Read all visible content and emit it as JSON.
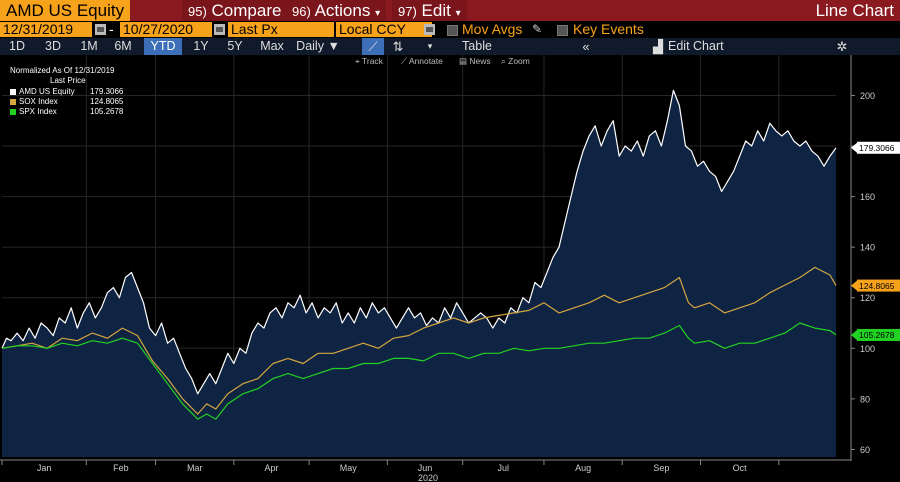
{
  "titlebar": {
    "ticker": "AMD US Equity",
    "compare_num": "95)",
    "compare": "Compare",
    "actions_num": "96)",
    "actions": "Actions",
    "edit_num": "97)",
    "edit": "Edit",
    "chart_type": "Line Chart"
  },
  "toolbar": {
    "start_date": "12/31/2019",
    "separator": "-",
    "end_date": "10/27/2020",
    "price_field": "Last Px",
    "currency": "Local CCY",
    "mov_avgs": "Mov Avgs",
    "key_events": "Key Events"
  },
  "periods": [
    "1D",
    "3D",
    "1M",
    "6M",
    "YTD",
    "1Y",
    "5Y",
    "Max"
  ],
  "active_period": "YTD",
  "frequency": "Daily",
  "table_label": "Table",
  "edit_chart": "Edit Chart",
  "tools": {
    "track": "Track",
    "annotate": "Annotate",
    "news": "News",
    "zoom": "Zoom"
  },
  "legend": {
    "title1": "Normalized As Of 12/31/2019",
    "title2": "Last Price",
    "items": [
      {
        "name": "AMD US Equity",
        "value": "179.3066",
        "color": "#ffffff"
      },
      {
        "name": "SOX Index",
        "value": "124.8065",
        "color": "#d4a640"
      },
      {
        "name": "SPX Index",
        "value": "105.2678",
        "color": "#22d222"
      }
    ]
  },
  "chart_data": {
    "type": "line",
    "xlabel": "2020",
    "month_labels": [
      "Jan",
      "Feb",
      "Mar",
      "Apr",
      "May",
      "Jun",
      "Jul",
      "Aug",
      "Sep",
      "Oct"
    ],
    "ylim": [
      57,
      216
    ],
    "yticks": [
      60,
      80,
      100,
      120,
      140,
      160,
      180,
      200
    ],
    "last_value_labels": [
      {
        "value": "179.3066",
        "color": "#ffffff",
        "bg": "#ffffff",
        "fg": "#000000"
      },
      {
        "value": "124.8065",
        "color": "#f7a21b",
        "bg": "#f7a21b",
        "fg": "#000000"
      },
      {
        "value": "105.2678",
        "color": "#22d222",
        "bg": "#22d222",
        "fg": "#000000"
      }
    ],
    "series": [
      {
        "name": "AMD US Equity",
        "color": "#ffffff",
        "area": true,
        "points": [
          [
            0,
            100
          ],
          [
            0.3,
            104
          ],
          [
            0.6,
            103
          ],
          [
            1,
            106
          ],
          [
            1.4,
            103
          ],
          [
            1.8,
            108
          ],
          [
            2.2,
            104
          ],
          [
            2.6,
            110
          ],
          [
            3.0,
            108
          ],
          [
            3.4,
            105
          ],
          [
            3.8,
            112
          ],
          [
            4.2,
            110
          ],
          [
            4.6,
            116
          ],
          [
            5,
            108
          ],
          [
            5.4,
            114
          ],
          [
            5.8,
            118
          ],
          [
            6.2,
            112
          ],
          [
            6.6,
            116
          ],
          [
            7,
            122
          ],
          [
            7.4,
            124
          ],
          [
            7.8,
            120
          ],
          [
            8.2,
            128
          ],
          [
            8.6,
            130
          ],
          [
            9,
            124
          ],
          [
            9.4,
            118
          ],
          [
            9.8,
            108
          ],
          [
            10.2,
            105
          ],
          [
            10.6,
            110
          ],
          [
            11,
            102
          ],
          [
            11.4,
            104
          ],
          [
            11.8,
            98
          ],
          [
            12.2,
            92
          ],
          [
            12.6,
            88
          ],
          [
            13,
            82
          ],
          [
            13.4,
            86
          ],
          [
            13.8,
            90
          ],
          [
            14.2,
            86
          ],
          [
            14.6,
            92
          ],
          [
            15,
            98
          ],
          [
            15.4,
            94
          ],
          [
            15.8,
            100
          ],
          [
            16.2,
            98
          ],
          [
            16.6,
            106
          ],
          [
            17,
            110
          ],
          [
            17.4,
            108
          ],
          [
            17.8,
            114
          ],
          [
            18.2,
            116
          ],
          [
            18.6,
            112
          ],
          [
            19,
            118
          ],
          [
            19.4,
            116
          ],
          [
            19.8,
            121
          ],
          [
            20.2,
            114
          ],
          [
            20.6,
            118
          ],
          [
            21,
            112
          ],
          [
            21.4,
            116
          ],
          [
            21.8,
            114
          ],
          [
            22.2,
            118
          ],
          [
            22.6,
            110
          ],
          [
            23,
            114
          ],
          [
            23.4,
            110
          ],
          [
            23.8,
            116
          ],
          [
            24.2,
            112
          ],
          [
            24.6,
            118
          ],
          [
            25,
            114
          ],
          [
            25.4,
            116
          ],
          [
            25.8,
            112
          ],
          [
            26.2,
            108
          ],
          [
            26.6,
            112
          ],
          [
            27,
            116
          ],
          [
            27.4,
            112
          ],
          [
            27.8,
            114
          ],
          [
            28.2,
            109
          ],
          [
            28.6,
            112
          ],
          [
            29,
            110
          ],
          [
            29.4,
            116
          ],
          [
            29.8,
            112
          ],
          [
            30.2,
            118
          ],
          [
            30.6,
            114
          ],
          [
            31,
            110
          ],
          [
            31.4,
            112
          ],
          [
            31.8,
            114
          ],
          [
            32.2,
            112
          ],
          [
            32.6,
            108
          ],
          [
            33,
            112
          ],
          [
            33.4,
            110
          ],
          [
            33.8,
            116
          ],
          [
            34.2,
            114
          ],
          [
            34.6,
            120
          ],
          [
            35,
            118
          ],
          [
            35.4,
            126
          ],
          [
            35.8,
            124
          ],
          [
            36.2,
            130
          ],
          [
            36.6,
            136
          ],
          [
            37,
            140
          ],
          [
            37.4,
            150
          ],
          [
            37.8,
            160
          ],
          [
            38.2,
            170
          ],
          [
            38.6,
            178
          ],
          [
            39,
            184
          ],
          [
            39.4,
            188
          ],
          [
            39.8,
            180
          ],
          [
            40.2,
            186
          ],
          [
            40.6,
            190
          ],
          [
            41,
            176
          ],
          [
            41.4,
            180
          ],
          [
            41.8,
            178
          ],
          [
            42.2,
            182
          ],
          [
            42.6,
            176
          ],
          [
            43,
            184
          ],
          [
            43.4,
            186
          ],
          [
            43.8,
            180
          ],
          [
            44.2,
            190
          ],
          [
            44.6,
            202
          ],
          [
            45,
            196
          ],
          [
            45.4,
            180
          ],
          [
            45.8,
            178
          ],
          [
            46.2,
            172
          ],
          [
            46.6,
            174
          ],
          [
            47,
            170
          ],
          [
            47.4,
            168
          ],
          [
            47.8,
            162
          ],
          [
            48.2,
            166
          ],
          [
            48.6,
            170
          ],
          [
            49,
            176
          ],
          [
            49.4,
            182
          ],
          [
            49.8,
            180
          ],
          [
            50.2,
            186
          ],
          [
            50.6,
            182
          ],
          [
            51,
            189
          ],
          [
            51.4,
            186
          ],
          [
            51.8,
            184
          ],
          [
            52.2,
            186
          ],
          [
            52.6,
            182
          ],
          [
            53,
            180
          ],
          [
            53.4,
            182
          ],
          [
            53.8,
            178
          ],
          [
            54.2,
            176
          ],
          [
            54.6,
            172
          ],
          [
            55,
            176
          ],
          [
            55.4,
            179.3
          ]
        ]
      },
      {
        "name": "SOX Index",
        "color": "#d4a640",
        "area": false,
        "points": [
          [
            0,
            100
          ],
          [
            1,
            101
          ],
          [
            2,
            102
          ],
          [
            3,
            100
          ],
          [
            4,
            104
          ],
          [
            5,
            103
          ],
          [
            6,
            106
          ],
          [
            7,
            104
          ],
          [
            8,
            108
          ],
          [
            9,
            105
          ],
          [
            10,
            95
          ],
          [
            11,
            88
          ],
          [
            12,
            80
          ],
          [
            13,
            74
          ],
          [
            13.6,
            78
          ],
          [
            14.2,
            76
          ],
          [
            15,
            82
          ],
          [
            16,
            86
          ],
          [
            17,
            88
          ],
          [
            18,
            94
          ],
          [
            19,
            96
          ],
          [
            20,
            94
          ],
          [
            21,
            98
          ],
          [
            22,
            98
          ],
          [
            23,
            100
          ],
          [
            24,
            102
          ],
          [
            25,
            100
          ],
          [
            26,
            104
          ],
          [
            27,
            105
          ],
          [
            28,
            108
          ],
          [
            29,
            110
          ],
          [
            30,
            112
          ],
          [
            31,
            110
          ],
          [
            32,
            112
          ],
          [
            33,
            113
          ],
          [
            34,
            114
          ],
          [
            35,
            115
          ],
          [
            36,
            118
          ],
          [
            37,
            114
          ],
          [
            38,
            116
          ],
          [
            39,
            118
          ],
          [
            40,
            121
          ],
          [
            41,
            118
          ],
          [
            42,
            120
          ],
          [
            43,
            122
          ],
          [
            44,
            124
          ],
          [
            45,
            128
          ],
          [
            45.6,
            118
          ],
          [
            46,
            116
          ],
          [
            47,
            118
          ],
          [
            48,
            114
          ],
          [
            49,
            116
          ],
          [
            50,
            118
          ],
          [
            51,
            122
          ],
          [
            52,
            125
          ],
          [
            53,
            128
          ],
          [
            54,
            132
          ],
          [
            55,
            129
          ],
          [
            55.4,
            124.8
          ]
        ]
      },
      {
        "name": "SPX Index",
        "color": "#22d222",
        "area": false,
        "points": [
          [
            0,
            100
          ],
          [
            1,
            101
          ],
          [
            2,
            101
          ],
          [
            3,
            100
          ],
          [
            4,
            102
          ],
          [
            5,
            101
          ],
          [
            6,
            103
          ],
          [
            7,
            102
          ],
          [
            8,
            104
          ],
          [
            9,
            102
          ],
          [
            10,
            94
          ],
          [
            11,
            86
          ],
          [
            12,
            78
          ],
          [
            13,
            72
          ],
          [
            13.6,
            74
          ],
          [
            14.2,
            72
          ],
          [
            15,
            78
          ],
          [
            16,
            82
          ],
          [
            17,
            84
          ],
          [
            18,
            88
          ],
          [
            19,
            90
          ],
          [
            20,
            88
          ],
          [
            21,
            90
          ],
          [
            22,
            92
          ],
          [
            23,
            92
          ],
          [
            24,
            94
          ],
          [
            25,
            94
          ],
          [
            26,
            96
          ],
          [
            27,
            96
          ],
          [
            28,
            95
          ],
          [
            29,
            98
          ],
          [
            30,
            98
          ],
          [
            31,
            96
          ],
          [
            32,
            98
          ],
          [
            33,
            98
          ],
          [
            34,
            100
          ],
          [
            35,
            99
          ],
          [
            36,
            100
          ],
          [
            37,
            100
          ],
          [
            38,
            101
          ],
          [
            39,
            102
          ],
          [
            40,
            102
          ],
          [
            41,
            103
          ],
          [
            42,
            104
          ],
          [
            43,
            104
          ],
          [
            44,
            106
          ],
          [
            45,
            109
          ],
          [
            45.6,
            104
          ],
          [
            46,
            102
          ],
          [
            47,
            103
          ],
          [
            48,
            100
          ],
          [
            49,
            102
          ],
          [
            50,
            102
          ],
          [
            51,
            104
          ],
          [
            52,
            106
          ],
          [
            53,
            110
          ],
          [
            54,
            108
          ],
          [
            55,
            107
          ],
          [
            55.4,
            105.3
          ]
        ]
      }
    ]
  }
}
